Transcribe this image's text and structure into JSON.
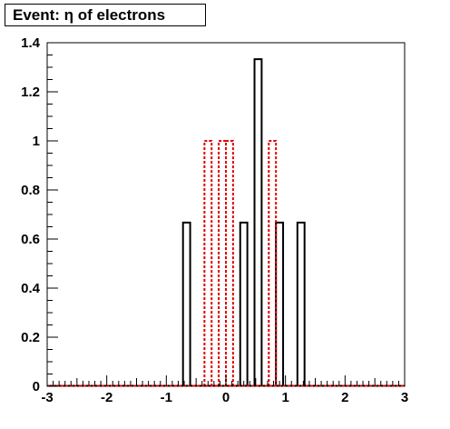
{
  "chart_data": {
    "type": "histogram",
    "title": "Event: η of electrons",
    "xlabel": "",
    "ylabel": "",
    "xlim": [
      -3,
      3
    ],
    "ylim": [
      0,
      1.4
    ],
    "grid": false,
    "legend": "none",
    "bin_width": 0.12,
    "x_ticks": [
      {
        "value": -3,
        "label": "-3"
      },
      {
        "value": -2,
        "label": "-2"
      },
      {
        "value": -1,
        "label": "-1"
      },
      {
        "value": 0,
        "label": "0"
      },
      {
        "value": 1,
        "label": "1"
      },
      {
        "value": 2,
        "label": "2"
      },
      {
        "value": 3,
        "label": "3"
      }
    ],
    "y_ticks": [
      {
        "value": 0,
        "label": "0"
      },
      {
        "value": 0.2,
        "label": "0.2"
      },
      {
        "value": 0.4,
        "label": "0.4"
      },
      {
        "value": 0.6,
        "label": "0.6"
      },
      {
        "value": 0.8,
        "label": "0.8"
      },
      {
        "value": 1,
        "label": "1"
      },
      {
        "value": 1.2,
        "label": "1.2"
      },
      {
        "value": 1.4,
        "label": "1.4"
      }
    ],
    "series": [
      {
        "style": "solid",
        "color": "#000000",
        "bins": [
          {
            "x": -0.72,
            "y": 0.667
          },
          {
            "x": 0.24,
            "y": 0.667
          },
          {
            "x": 0.48,
            "y": 1.333
          },
          {
            "x": 0.84,
            "y": 0.667
          },
          {
            "x": 1.2,
            "y": 0.667
          }
        ]
      },
      {
        "style": "dashed",
        "color": "#dd0000",
        "bins": [
          {
            "x": -0.36,
            "y": 1.0
          },
          {
            "x": -0.12,
            "y": 1.0
          },
          {
            "x": 0.0,
            "y": 1.0
          },
          {
            "x": 0.72,
            "y": 1.0
          }
        ]
      }
    ]
  }
}
